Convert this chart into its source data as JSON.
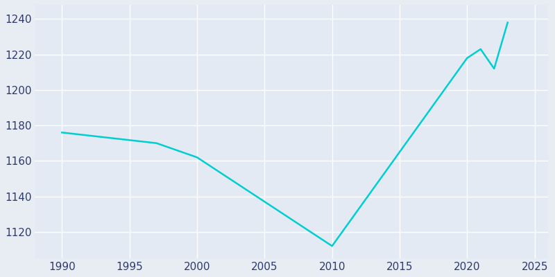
{
  "years": [
    1990,
    1997,
    2000,
    2005,
    2010,
    2020,
    2021,
    2022,
    2023
  ],
  "population": [
    1176,
    1170,
    1162,
    1137,
    1112,
    1218,
    1223,
    1212,
    1238
  ],
  "line_color": "#00CED1",
  "bg_color": "#E8EDF4",
  "plot_bg_color": "#E3EAF4",
  "grid_color": "#FFFFFF",
  "text_color": "#2E3A6E",
  "xlim": [
    1988,
    2026
  ],
  "ylim": [
    1105,
    1248
  ],
  "xticks": [
    1990,
    1995,
    2000,
    2005,
    2010,
    2015,
    2020,
    2025
  ],
  "yticks": [
    1120,
    1140,
    1160,
    1180,
    1200,
    1220,
    1240
  ],
  "linewidth": 1.8,
  "figsize": [
    8.0,
    4.0
  ],
  "dpi": 100
}
